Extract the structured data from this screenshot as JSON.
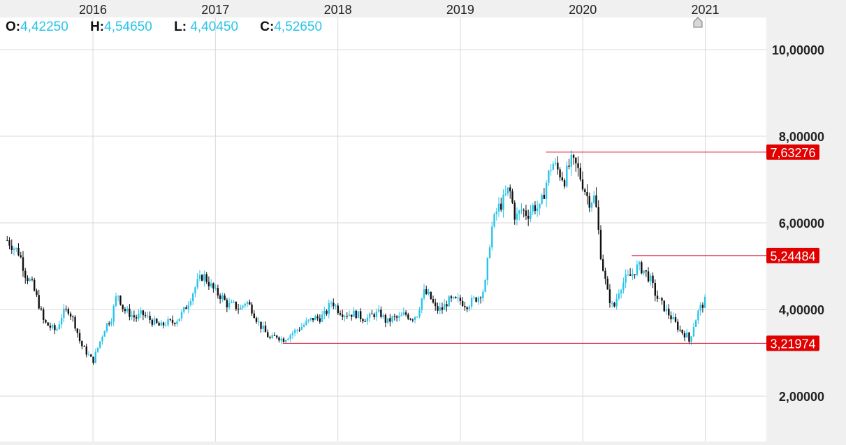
{
  "ohlc": {
    "o_label": "O:",
    "o_value": "4,42250",
    "h_label": "H:",
    "h_value": "4,54650",
    "l_label": "L:",
    "l_value": "4,40450",
    "c_label": "C:",
    "c_value": "4,52650"
  },
  "colors": {
    "up": "#29c4ea",
    "down": "#111111",
    "marker_line": "#d0021b",
    "marker_bg": "#e00000",
    "grid": "#d8d8d8",
    "plot_bg": "#ffffff",
    "axis_bg": "#f0f0f0"
  },
  "chart_data": {
    "type": "candlestick",
    "title": "",
    "xlabel": "",
    "ylabel": "",
    "x_ticks": [
      "2016",
      "2017",
      "2018",
      "2019",
      "2020",
      "2021"
    ],
    "y_ticks": [
      2,
      4,
      6,
      8,
      10
    ],
    "y_tick_labels": [
      "2,00000",
      "4,00000",
      "6,00000",
      "8,00000",
      "10,00000"
    ],
    "ylim": [
      1,
      10.8
    ],
    "xlim": [
      2015.3,
      2021.5
    ],
    "grid": true,
    "price_trace": [
      [
        2015.3,
        5.6
      ],
      [
        2015.4,
        5.3
      ],
      [
        2015.45,
        4.8
      ],
      [
        2015.5,
        4.6
      ],
      [
        2015.55,
        4.2
      ],
      [
        2015.6,
        3.7
      ],
      [
        2015.65,
        3.6
      ],
      [
        2015.7,
        3.5
      ],
      [
        2015.75,
        3.9
      ],
      [
        2015.8,
        4.0
      ],
      [
        2015.85,
        3.7
      ],
      [
        2015.9,
        3.2
      ],
      [
        2015.95,
        3.0
      ],
      [
        2016.0,
        2.8
      ],
      [
        2016.05,
        3.2
      ],
      [
        2016.1,
        3.6
      ],
      [
        2016.15,
        3.8
      ],
      [
        2016.2,
        4.4
      ],
      [
        2016.25,
        4.0
      ],
      [
        2016.3,
        3.9
      ],
      [
        2016.35,
        3.8
      ],
      [
        2016.4,
        3.9
      ],
      [
        2016.45,
        3.8
      ],
      [
        2016.5,
        3.7
      ],
      [
        2016.55,
        3.6
      ],
      [
        2016.6,
        3.7
      ],
      [
        2016.65,
        3.7
      ],
      [
        2016.7,
        3.8
      ],
      [
        2016.75,
        4.0
      ],
      [
        2016.8,
        4.3
      ],
      [
        2016.85,
        4.6
      ],
      [
        2016.9,
        4.8
      ],
      [
        2016.95,
        4.6
      ],
      [
        2017.0,
        4.4
      ],
      [
        2017.05,
        4.3
      ],
      [
        2017.1,
        4.1
      ],
      [
        2017.15,
        4.1
      ],
      [
        2017.2,
        4.0
      ],
      [
        2017.25,
        4.2
      ],
      [
        2017.3,
        4.0
      ],
      [
        2017.35,
        3.7
      ],
      [
        2017.4,
        3.5
      ],
      [
        2017.45,
        3.3
      ],
      [
        2017.5,
        3.4
      ],
      [
        2017.55,
        3.3
      ],
      [
        2017.6,
        3.4
      ],
      [
        2017.65,
        3.5
      ],
      [
        2017.7,
        3.6
      ],
      [
        2017.75,
        3.7
      ],
      [
        2017.8,
        3.8
      ],
      [
        2017.85,
        3.8
      ],
      [
        2017.9,
        3.9
      ],
      [
        2017.95,
        4.2
      ],
      [
        2018.0,
        4.0
      ],
      [
        2018.05,
        3.9
      ],
      [
        2018.1,
        3.9
      ],
      [
        2018.15,
        3.9
      ],
      [
        2018.2,
        3.8
      ],
      [
        2018.25,
        3.8
      ],
      [
        2018.3,
        3.9
      ],
      [
        2018.35,
        3.9
      ],
      [
        2018.4,
        3.7
      ],
      [
        2018.45,
        3.8
      ],
      [
        2018.5,
        3.8
      ],
      [
        2018.55,
        3.9
      ],
      [
        2018.6,
        3.8
      ],
      [
        2018.65,
        3.9
      ],
      [
        2018.7,
        4.4
      ],
      [
        2018.75,
        4.3
      ],
      [
        2018.8,
        4.0
      ],
      [
        2018.85,
        4.0
      ],
      [
        2018.9,
        4.2
      ],
      [
        2018.95,
        4.2
      ],
      [
        2019.0,
        4.2
      ],
      [
        2019.05,
        4.1
      ],
      [
        2019.1,
        4.2
      ],
      [
        2019.15,
        4.3
      ],
      [
        2019.2,
        4.5
      ],
      [
        2019.25,
        5.8
      ],
      [
        2019.3,
        6.3
      ],
      [
        2019.35,
        6.5
      ],
      [
        2019.4,
        6.8
      ],
      [
        2019.45,
        6.1
      ],
      [
        2019.5,
        6.3
      ],
      [
        2019.55,
        6.2
      ],
      [
        2019.6,
        6.4
      ],
      [
        2019.65,
        6.3
      ],
      [
        2019.7,
        6.9
      ],
      [
        2019.75,
        7.4
      ],
      [
        2019.8,
        7.2
      ],
      [
        2019.85,
        7.0
      ],
      [
        2019.9,
        7.4
      ],
      [
        2019.95,
        7.3
      ],
      [
        2020.0,
        6.9
      ],
      [
        2020.05,
        6.5
      ],
      [
        2020.1,
        6.6
      ],
      [
        2020.15,
        5.2
      ],
      [
        2020.2,
        4.4
      ],
      [
        2020.25,
        4.0
      ],
      [
        2020.3,
        4.5
      ],
      [
        2020.35,
        4.7
      ],
      [
        2020.4,
        4.8
      ],
      [
        2020.45,
        5.0
      ],
      [
        2020.5,
        4.9
      ],
      [
        2020.55,
        4.7
      ],
      [
        2020.6,
        4.3
      ],
      [
        2020.65,
        4.1
      ],
      [
        2020.7,
        3.9
      ],
      [
        2020.75,
        3.7
      ],
      [
        2020.8,
        3.5
      ],
      [
        2020.85,
        3.4
      ],
      [
        2020.87,
        3.25
      ],
      [
        2020.9,
        3.6
      ],
      [
        2020.95,
        4.0
      ],
      [
        2021.0,
        4.2
      ]
    ],
    "last_candle": {
      "open": 4.4225,
      "high": 4.5465,
      "low": 4.4045,
      "close": 4.5265
    },
    "levels": [
      {
        "value": 7.63276,
        "label": "7,63276",
        "x_start": 2019.7
      },
      {
        "value": 5.24484,
        "label": "5,24484",
        "x_start": 2020.4
      },
      {
        "value": 3.21974,
        "label": "3,21974",
        "x_start": 2017.55
      }
    ]
  }
}
